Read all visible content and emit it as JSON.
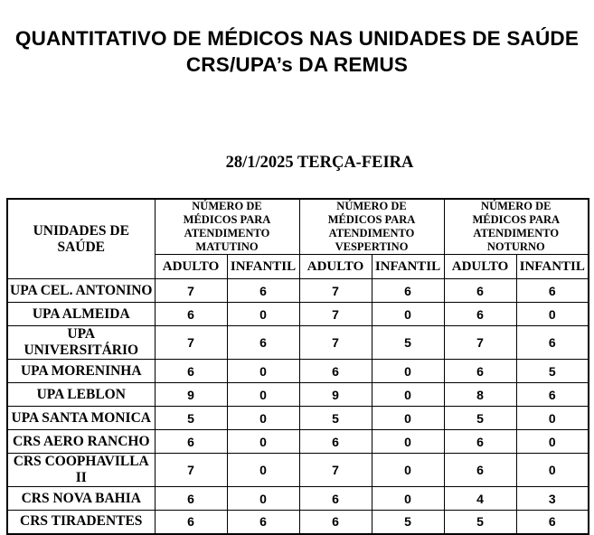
{
  "page": {
    "title_line1": "QUANTITATIVO DE MÉDICOS NAS UNIDADES DE SAÚDE",
    "title_line2": "CRS/UPA’s DA REMUS",
    "date_line": "28/1/2025 TERÇA-FEIRA"
  },
  "colors": {
    "background": "#ffffff",
    "text": "#000000",
    "table_border": "#000000"
  },
  "table": {
    "unit_header": "UNIDADES DE SAÚDE",
    "groups": [
      {
        "label": "NÚMERO DE MÉDICOS PARA ATENDIMENTO MATUTINO"
      },
      {
        "label": "NÚMERO DE MÉDICOS PARA ATENDIMENTO VESPERTINO"
      },
      {
        "label": "NÚMERO DE MÉDICOS PARA ATENDIMENTO NOTURNO"
      }
    ],
    "subheaders": [
      "ADULTO",
      "INFANTIL"
    ],
    "rows": [
      {
        "unit": "UPA CEL. ANTONINO",
        "values": [
          7,
          6,
          7,
          6,
          6,
          6
        ]
      },
      {
        "unit": "UPA ALMEIDA",
        "values": [
          6,
          0,
          7,
          0,
          6,
          0
        ]
      },
      {
        "unit": "UPA UNIVERSITÁRIO",
        "values": [
          7,
          6,
          7,
          5,
          7,
          6
        ]
      },
      {
        "unit": "UPA MORENINHA",
        "values": [
          6,
          0,
          6,
          0,
          6,
          5
        ]
      },
      {
        "unit": "UPA LEBLON",
        "values": [
          9,
          0,
          9,
          0,
          8,
          6
        ]
      },
      {
        "unit": "UPA SANTA MONICA",
        "values": [
          5,
          0,
          5,
          0,
          5,
          0
        ]
      },
      {
        "unit": "CRS AERO RANCHO",
        "values": [
          6,
          0,
          6,
          0,
          6,
          0
        ]
      },
      {
        "unit": "CRS COOPHAVILLA II",
        "values": [
          7,
          0,
          7,
          0,
          6,
          0
        ]
      },
      {
        "unit": "CRS NOVA BAHIA",
        "values": [
          6,
          0,
          6,
          0,
          4,
          3
        ]
      },
      {
        "unit": "CRS TIRADENTES",
        "values": [
          6,
          6,
          6,
          5,
          5,
          6
        ]
      }
    ]
  }
}
